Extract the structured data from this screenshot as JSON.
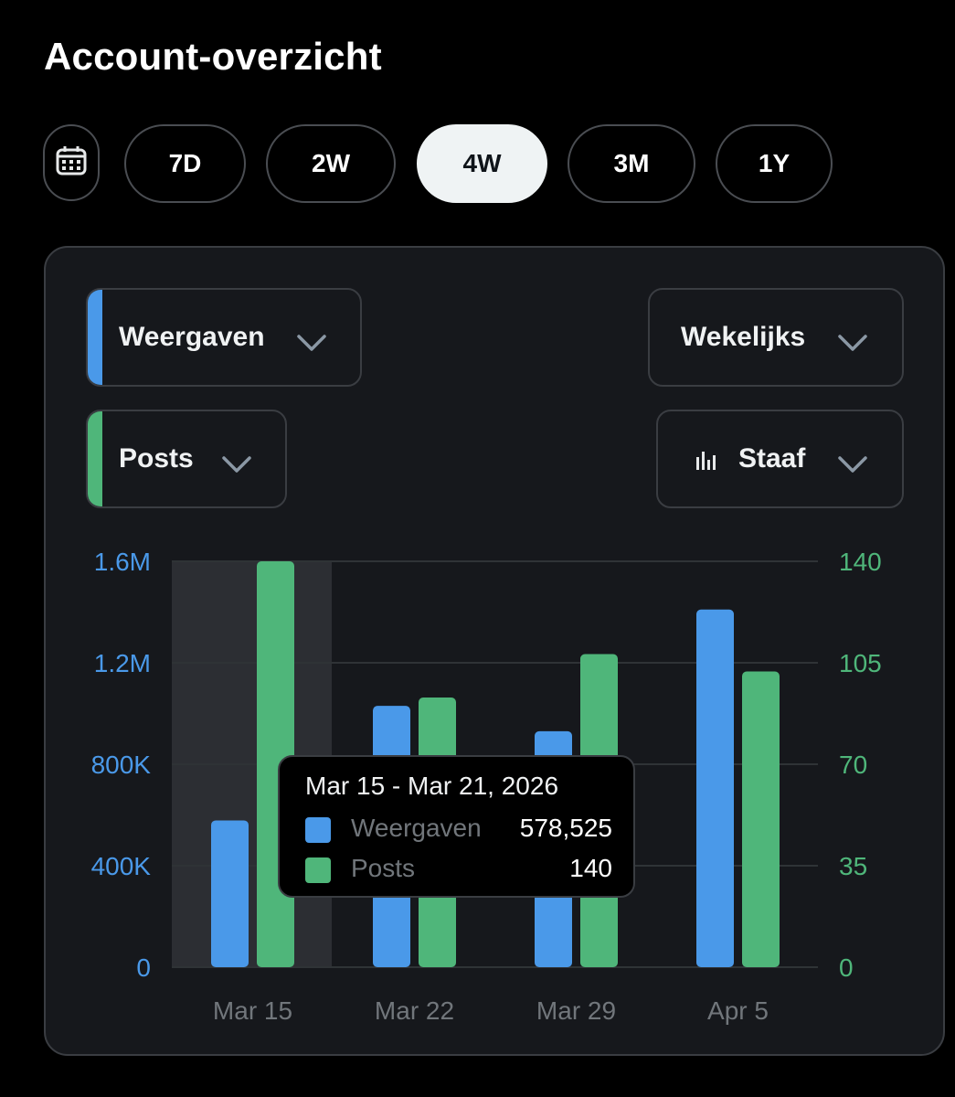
{
  "page_title": "Account-overzicht",
  "periods": [
    {
      "label": "7D",
      "active": false
    },
    {
      "label": "2W",
      "active": false
    },
    {
      "label": "4W",
      "active": true
    },
    {
      "label": "3M",
      "active": false
    },
    {
      "label": "1Y",
      "active": false
    }
  ],
  "icons": {
    "calendar": "calendar-icon",
    "chevron": "chevron-down-icon",
    "bar_chart": "bar-chart-icon"
  },
  "selectors": {
    "metric1": {
      "label": "Weergaven",
      "color": "#4a99e9"
    },
    "metric2": {
      "label": "Posts",
      "color": "#4fb67a"
    },
    "interval": {
      "label": "Wekelijks"
    },
    "chart_type": {
      "label": "Staaf"
    }
  },
  "tooltip": {
    "date_range": "Mar 15 - Mar 21, 2026",
    "rows": [
      {
        "name": "Weergaven",
        "value": "578,525",
        "color": "#4a99e9"
      },
      {
        "name": "Posts",
        "value": "140",
        "color": "#4fb67a"
      }
    ]
  },
  "chart_data": {
    "type": "bar",
    "categories": [
      "Mar 15",
      "Mar 22",
      "Mar 29",
      "Apr 5"
    ],
    "series": [
      {
        "name": "Weergaven",
        "axis": "left",
        "color": "#4a99e9",
        "values": [
          578525,
          1030000,
          930000,
          1410000
        ]
      },
      {
        "name": "Posts",
        "axis": "right",
        "color": "#4fb67a",
        "values": [
          140,
          93,
          108,
          102
        ]
      }
    ],
    "y_left": {
      "min": 0,
      "max": 1600000,
      "ticks": [
        "0",
        "400K",
        "800K",
        "1.2M",
        "1.6M"
      ],
      "color": "#4a99e9"
    },
    "y_right": {
      "min": 0,
      "max": 140,
      "ticks": [
        "0",
        "35",
        "70",
        "105",
        "140"
      ],
      "color": "#4fb67a"
    },
    "highlighted_category": "Mar 15",
    "grid": true
  }
}
